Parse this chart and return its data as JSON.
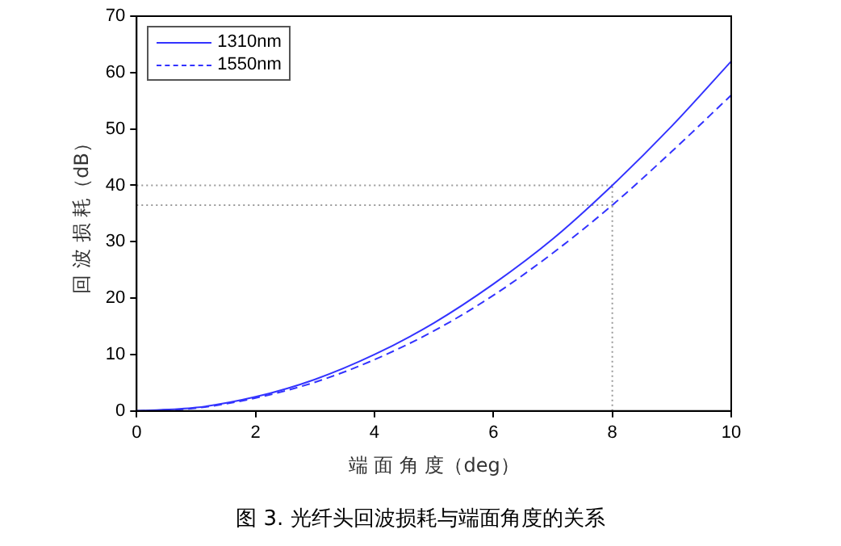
{
  "chart_data": {
    "type": "line",
    "xlabel": "端 面 角 度（deg）",
    "ylabel": "回 波 损 耗（dB）",
    "x": [
      0,
      1,
      2,
      3,
      4,
      5,
      6,
      7,
      8,
      9,
      10
    ],
    "series": [
      {
        "name": "1310nm",
        "color": "#3333ff",
        "line_style": "solid",
        "values": [
          0,
          0.6,
          2.5,
          5.6,
          10,
          15.6,
          22.5,
          30.5,
          40,
          50.5,
          62
        ]
      },
      {
        "name": "1550nm",
        "color": "#3333ff",
        "line_style": "dashed",
        "values": [
          0,
          0.5,
          2.3,
          5.1,
          9.1,
          14.2,
          20.5,
          28,
          36.5,
          46,
          56
        ]
      }
    ],
    "xlim": [
      0,
      10
    ],
    "xticks": [
      0,
      2,
      4,
      6,
      8,
      10
    ],
    "ylim": [
      0,
      70
    ],
    "yticks": [
      0,
      10,
      20,
      30,
      40,
      50,
      60,
      70
    ],
    "grid": false,
    "legend": "top left",
    "marker": "none",
    "ref_lines": [
      {
        "axis": "y",
        "value": 40,
        "color": "#999999",
        "line_style": "dotted"
      },
      {
        "axis": "y",
        "value": 36.5,
        "color": "#999999",
        "line_style": "dotted"
      },
      {
        "axis": "x",
        "value": 8,
        "color": "#999999",
        "line_style": "dotted"
      }
    ],
    "annotations": [
      "图 3.  光纤头回波损耗与端面角度的关系"
    ]
  }
}
